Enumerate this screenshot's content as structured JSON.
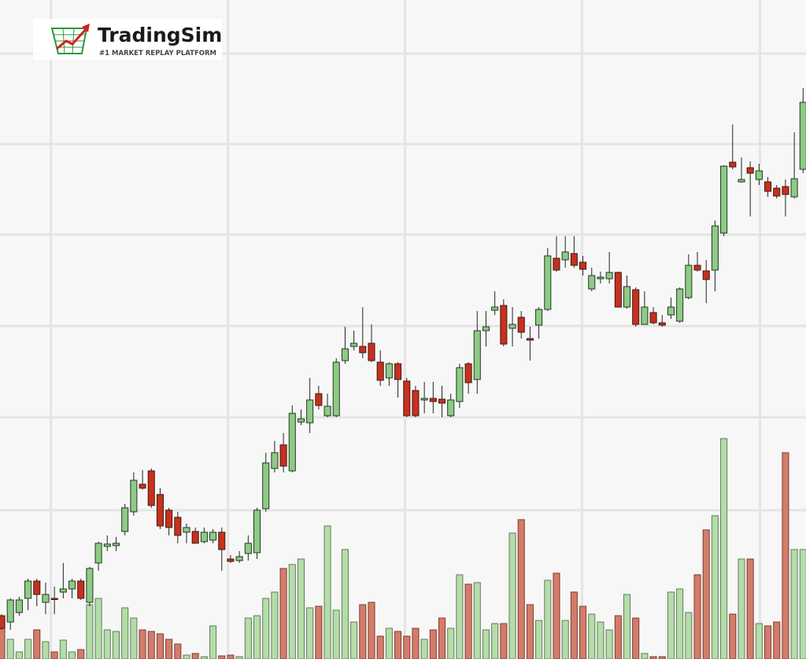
{
  "logo": {
    "title": "TradingSim",
    "tagline": "#1 MARKET REPLAY PLATFORM"
  },
  "chart_data": {
    "type": "candlestick",
    "up_color": "#8fca86",
    "down_color": "#c8301e",
    "volume_up_color": "#b5dca9",
    "volume_down_color": "#d47c6a",
    "grid": true,
    "xlim": [
      -0.18,
      91.33
    ],
    "xticks": [
      5.6,
      25.7,
      45.8,
      65.9,
      86.1
    ],
    "ylim": [
      0,
      837
    ],
    "yticks": [
      769,
      654,
      539,
      423,
      307,
      189
    ],
    "y2lim": [
      0,
      837
    ],
    "open": [
      55,
      47,
      59,
      77,
      99,
      72,
      77,
      85,
      89,
      99,
      72,
      122,
      143,
      144,
      162,
      187,
      222,
      239,
      209,
      189,
      180,
      161,
      162,
      149,
      151,
      161,
      127,
      125,
      134,
      135,
      191,
      242,
      272,
      239,
      301,
      300,
      337,
      309,
      309,
      379,
      397,
      397,
      401,
      377,
      357,
      375,
      353,
      341,
      329,
      331,
      330,
      309,
      327,
      375,
      355,
      417,
      443,
      449,
      420,
      434,
      407,
      424,
      444,
      509,
      507,
      515,
      504,
      470,
      483,
      483,
      491,
      447,
      469,
      425,
      440,
      427,
      437,
      429,
      459,
      500,
      493,
      494,
      541,
      631,
      606,
      624,
      609,
      606,
      598,
      600,
      587,
      622
    ],
    "high": [
      57,
      77,
      79,
      102,
      102,
      97,
      92,
      122,
      102,
      102,
      117,
      149,
      157,
      155,
      197,
      237,
      240,
      242,
      217,
      192,
      187,
      172,
      167,
      167,
      165,
      167,
      132,
      137,
      157,
      192,
      262,
      277,
      287,
      322,
      317,
      357,
      347,
      337,
      382,
      422,
      417,
      447,
      425,
      392,
      377,
      377,
      357,
      347,
      352,
      352,
      347,
      337,
      375,
      377,
      442,
      442,
      467,
      457,
      447,
      442,
      422,
      447,
      522,
      537,
      537,
      537,
      512,
      497,
      492,
      517,
      492,
      487,
      472,
      467,
      447,
      437,
      459,
      472,
      514,
      517,
      507,
      557,
      627,
      679,
      637,
      632,
      629,
      612,
      602,
      609,
      669,
      725
    ],
    "low": [
      37,
      37,
      55,
      62,
      67,
      57,
      57,
      77,
      77,
      75,
      67,
      112,
      137,
      137,
      157,
      182,
      215,
      192,
      165,
      157,
      147,
      147,
      147,
      147,
      147,
      112,
      122,
      122,
      125,
      127,
      187,
      237,
      237,
      237,
      297,
      287,
      317,
      307,
      307,
      375,
      392,
      382,
      377,
      347,
      347,
      332,
      307,
      307,
      312,
      312,
      307,
      307,
      319,
      337,
      337,
      397,
      437,
      397,
      397,
      407,
      379,
      407,
      442,
      492,
      497,
      497,
      487,
      467,
      477,
      477,
      447,
      445,
      422,
      425,
      425,
      422,
      432,
      427,
      457,
      492,
      452,
      467,
      537,
      622,
      605,
      562,
      602,
      587,
      585,
      562,
      585,
      617
    ],
    "close": [
      39,
      75,
      75,
      99,
      82,
      82,
      76,
      89,
      99,
      77,
      115,
      147,
      146,
      147,
      192,
      227,
      217,
      195,
      169,
      167,
      157,
      167,
      147,
      161,
      161,
      139,
      124,
      130,
      147,
      189,
      249,
      262,
      245,
      312,
      305,
      329,
      322,
      321,
      377,
      394,
      401,
      389,
      379,
      354,
      375,
      355,
      309,
      309,
      331,
      327,
      325,
      329,
      370,
      351,
      417,
      422,
      447,
      400,
      425,
      415,
      405,
      444,
      512,
      494,
      517,
      500,
      495,
      487,
      485,
      491,
      447,
      473,
      425,
      447,
      427,
      424,
      447,
      470,
      500,
      494,
      482,
      550,
      626,
      625,
      609,
      617,
      620,
      594,
      588,
      590,
      610,
      707
    ],
    "volume": [
      47,
      25,
      9,
      25,
      37,
      22,
      9,
      24,
      9,
      12,
      69,
      77,
      37,
      35,
      65,
      52,
      37,
      35,
      32,
      25,
      19,
      5,
      7,
      3,
      42,
      4,
      5,
      3,
      52,
      55,
      77,
      85,
      115,
      120,
      127,
      65,
      67,
      169,
      62,
      139,
      47,
      69,
      72,
      29,
      39,
      35,
      29,
      39,
      25,
      37,
      52,
      39,
      107,
      95,
      97,
      37,
      45,
      45,
      160,
      177,
      69,
      49,
      100,
      109,
      49,
      85,
      67,
      57,
      47,
      37,
      55,
      82,
      52,
      7,
      3,
      3,
      85,
      89,
      59,
      107,
      164,
      182,
      280,
      57,
      127,
      127,
      45,
      42,
      47,
      262,
      139,
      139
    ]
  }
}
